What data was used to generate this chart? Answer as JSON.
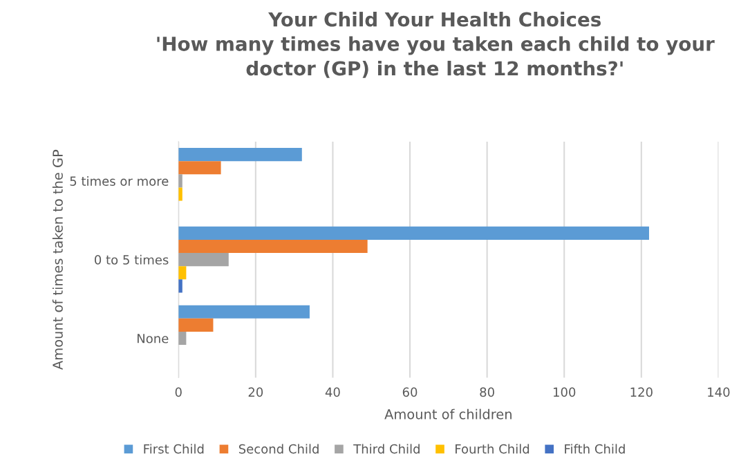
{
  "chart_data": {
    "type": "bar",
    "orientation": "horizontal",
    "title": "Your Child Your Health Choices\n'How many times have you taken each child to your doctor (GP) in the last 12 months?'",
    "xlabel": "Amount of children",
    "ylabel": "Amount of times taken to the GP",
    "categories": [
      "5 times or more",
      "0 to 5 times",
      "None"
    ],
    "series": [
      {
        "name": "First Child",
        "color": "#5b9bd5",
        "values": [
          32,
          122,
          34
        ]
      },
      {
        "name": "Second Child",
        "color": "#ed7d31",
        "values": [
          11,
          49,
          9
        ]
      },
      {
        "name": "Third Child",
        "color": "#a5a5a5",
        "values": [
          1,
          13,
          2
        ]
      },
      {
        "name": "Fourth Child",
        "color": "#ffc000",
        "values": [
          1,
          2,
          0
        ]
      },
      {
        "name": "Fifth Child",
        "color": "#4472c4",
        "values": [
          0,
          1,
          0
        ]
      }
    ],
    "xlim": [
      0,
      140
    ],
    "xticks": [
      0,
      20,
      40,
      60,
      80,
      100,
      120,
      140
    ],
    "grid": "x",
    "legend": "bottom"
  }
}
